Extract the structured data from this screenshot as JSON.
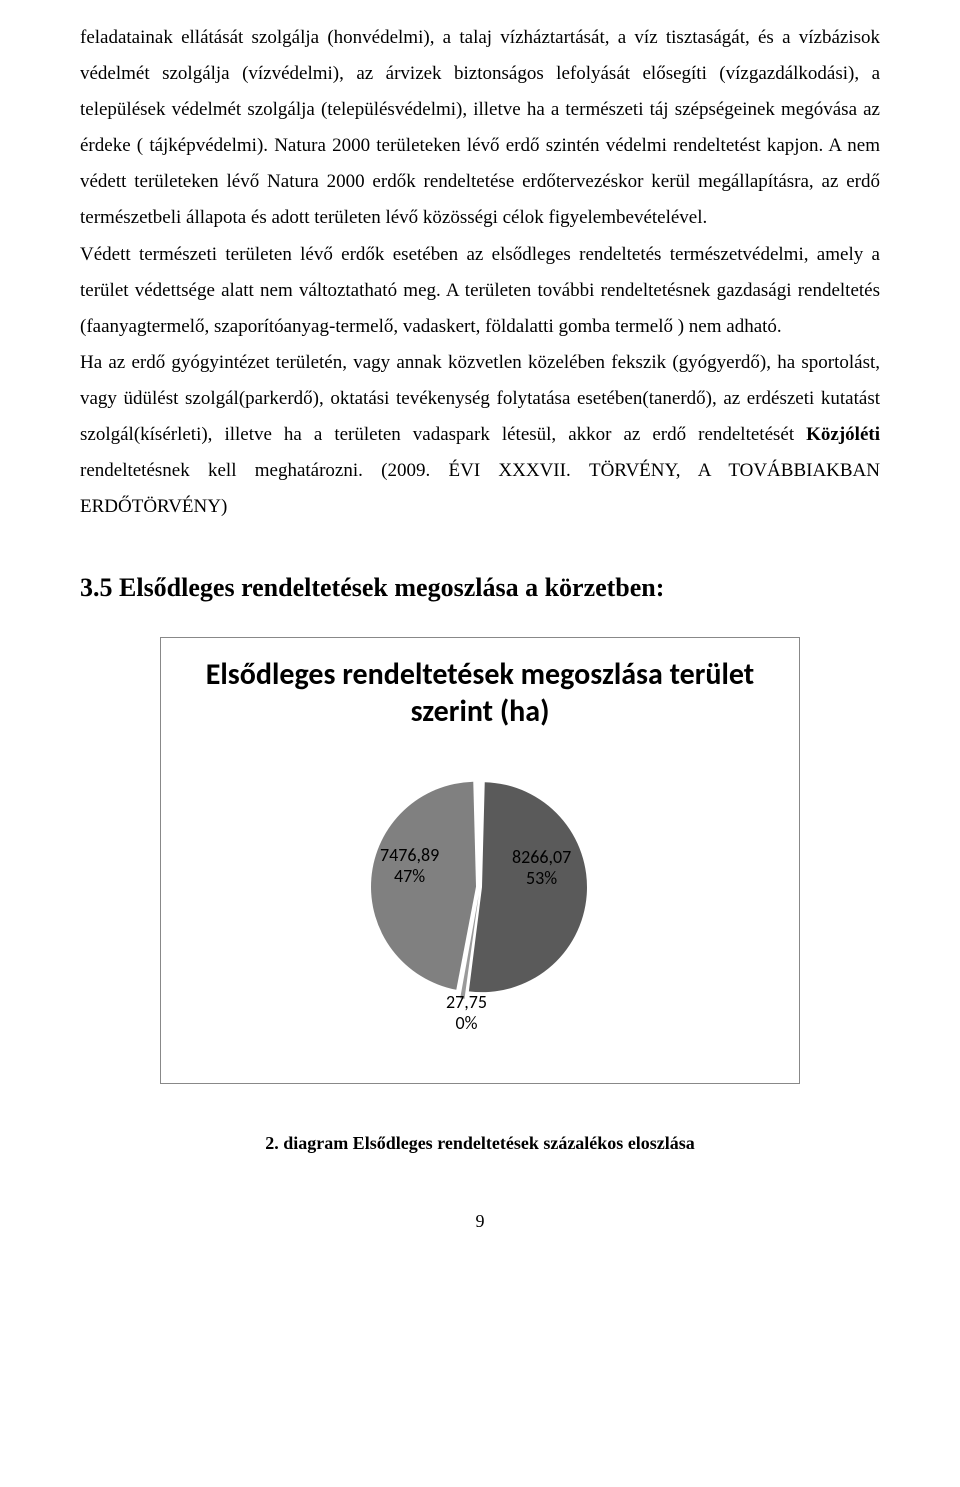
{
  "paragraphs": {
    "p1": "feladatainak ellátását szolgálja (honvédelmi), a talaj vízháztartását, a víz tisztaságát, és a vízbázisok védelmét szolgálja (vízvédelmi), az árvizek biztonságos lefolyását elősegíti (vízgazdálkodási), a települések védelmét szolgálja (településvédelmi), illetve ha a természeti táj szépségeinek megóvása az érdeke ( tájképvédelmi). Natura 2000 területeken lévő erdő szintén védelmi rendeltetést kapjon. A nem védett területeken lévő Natura 2000 erdők rendeltetése erdőtervezéskor kerül megállapításra, az erdő természetbeli állapota és adott területen lévő közösségi célok figyelembevételével.",
    "p2": "Védett természeti területen lévő erdők esetében az elsődleges rendeltetés természetvédelmi, amely a terület védettsége alatt nem változtatható meg. A területen további rendeltetésnek gazdasági rendeltetés (faanyagtermelő, szaporítóanyag-termelő, vadaskert, földalatti gomba termelő ) nem adható.",
    "p3_part1": "Ha az erdő gyógyintézet területén, vagy annak közvetlen közelében fekszik (gyógyerdő), ha sportolást, vagy üdülést szolgál(parkerdő), oktatási tevékenység folytatása esetében(tanerdő), az erdészeti kutatást szolgál(kísérleti), illetve ha a területen vadaspark létesül, akkor az erdő rendeltetését ",
    "p3_bold": "Közjóléti ",
    "p3_part2": "rendeltetésnek kell meghatározni. (2009. ",
    "p3_sc1": "ÉVI",
    "p3_part3": " XXXVII. ",
    "p3_sc2": "TÖRVÉNY, A TOVÁBBIAKBAN ERDŐTÖRVÉNY",
    "p3_part4": ")"
  },
  "section": {
    "number": "3.5",
    "title": "Elsődleges rendeltetések megoszlása a körzetben:"
  },
  "chart": {
    "type": "pie",
    "title": "Elsődleges rendeltetések megoszlása terület szerint (ha)",
    "slices": [
      {
        "value": 8266.07,
        "percent": 53,
        "label_value": "8266,07",
        "label_pct": "53%",
        "color": "#5a5a5a"
      },
      {
        "value": 27.75,
        "percent": 0,
        "label_value": "27,75",
        "label_pct": "0%",
        "color": "#9a9a9a"
      },
      {
        "value": 7476.89,
        "percent": 47,
        "label_value": "7476,89",
        "label_pct": "47%",
        "color": "#808080"
      }
    ],
    "background_color": "#ffffff",
    "label_fontsize": 18,
    "title_fontsize": 30,
    "pie_radius": 105,
    "gap_deg": 3
  },
  "caption": "2. diagram Elsődleges rendeltetések százalékos eloszlása",
  "page_number": "9"
}
